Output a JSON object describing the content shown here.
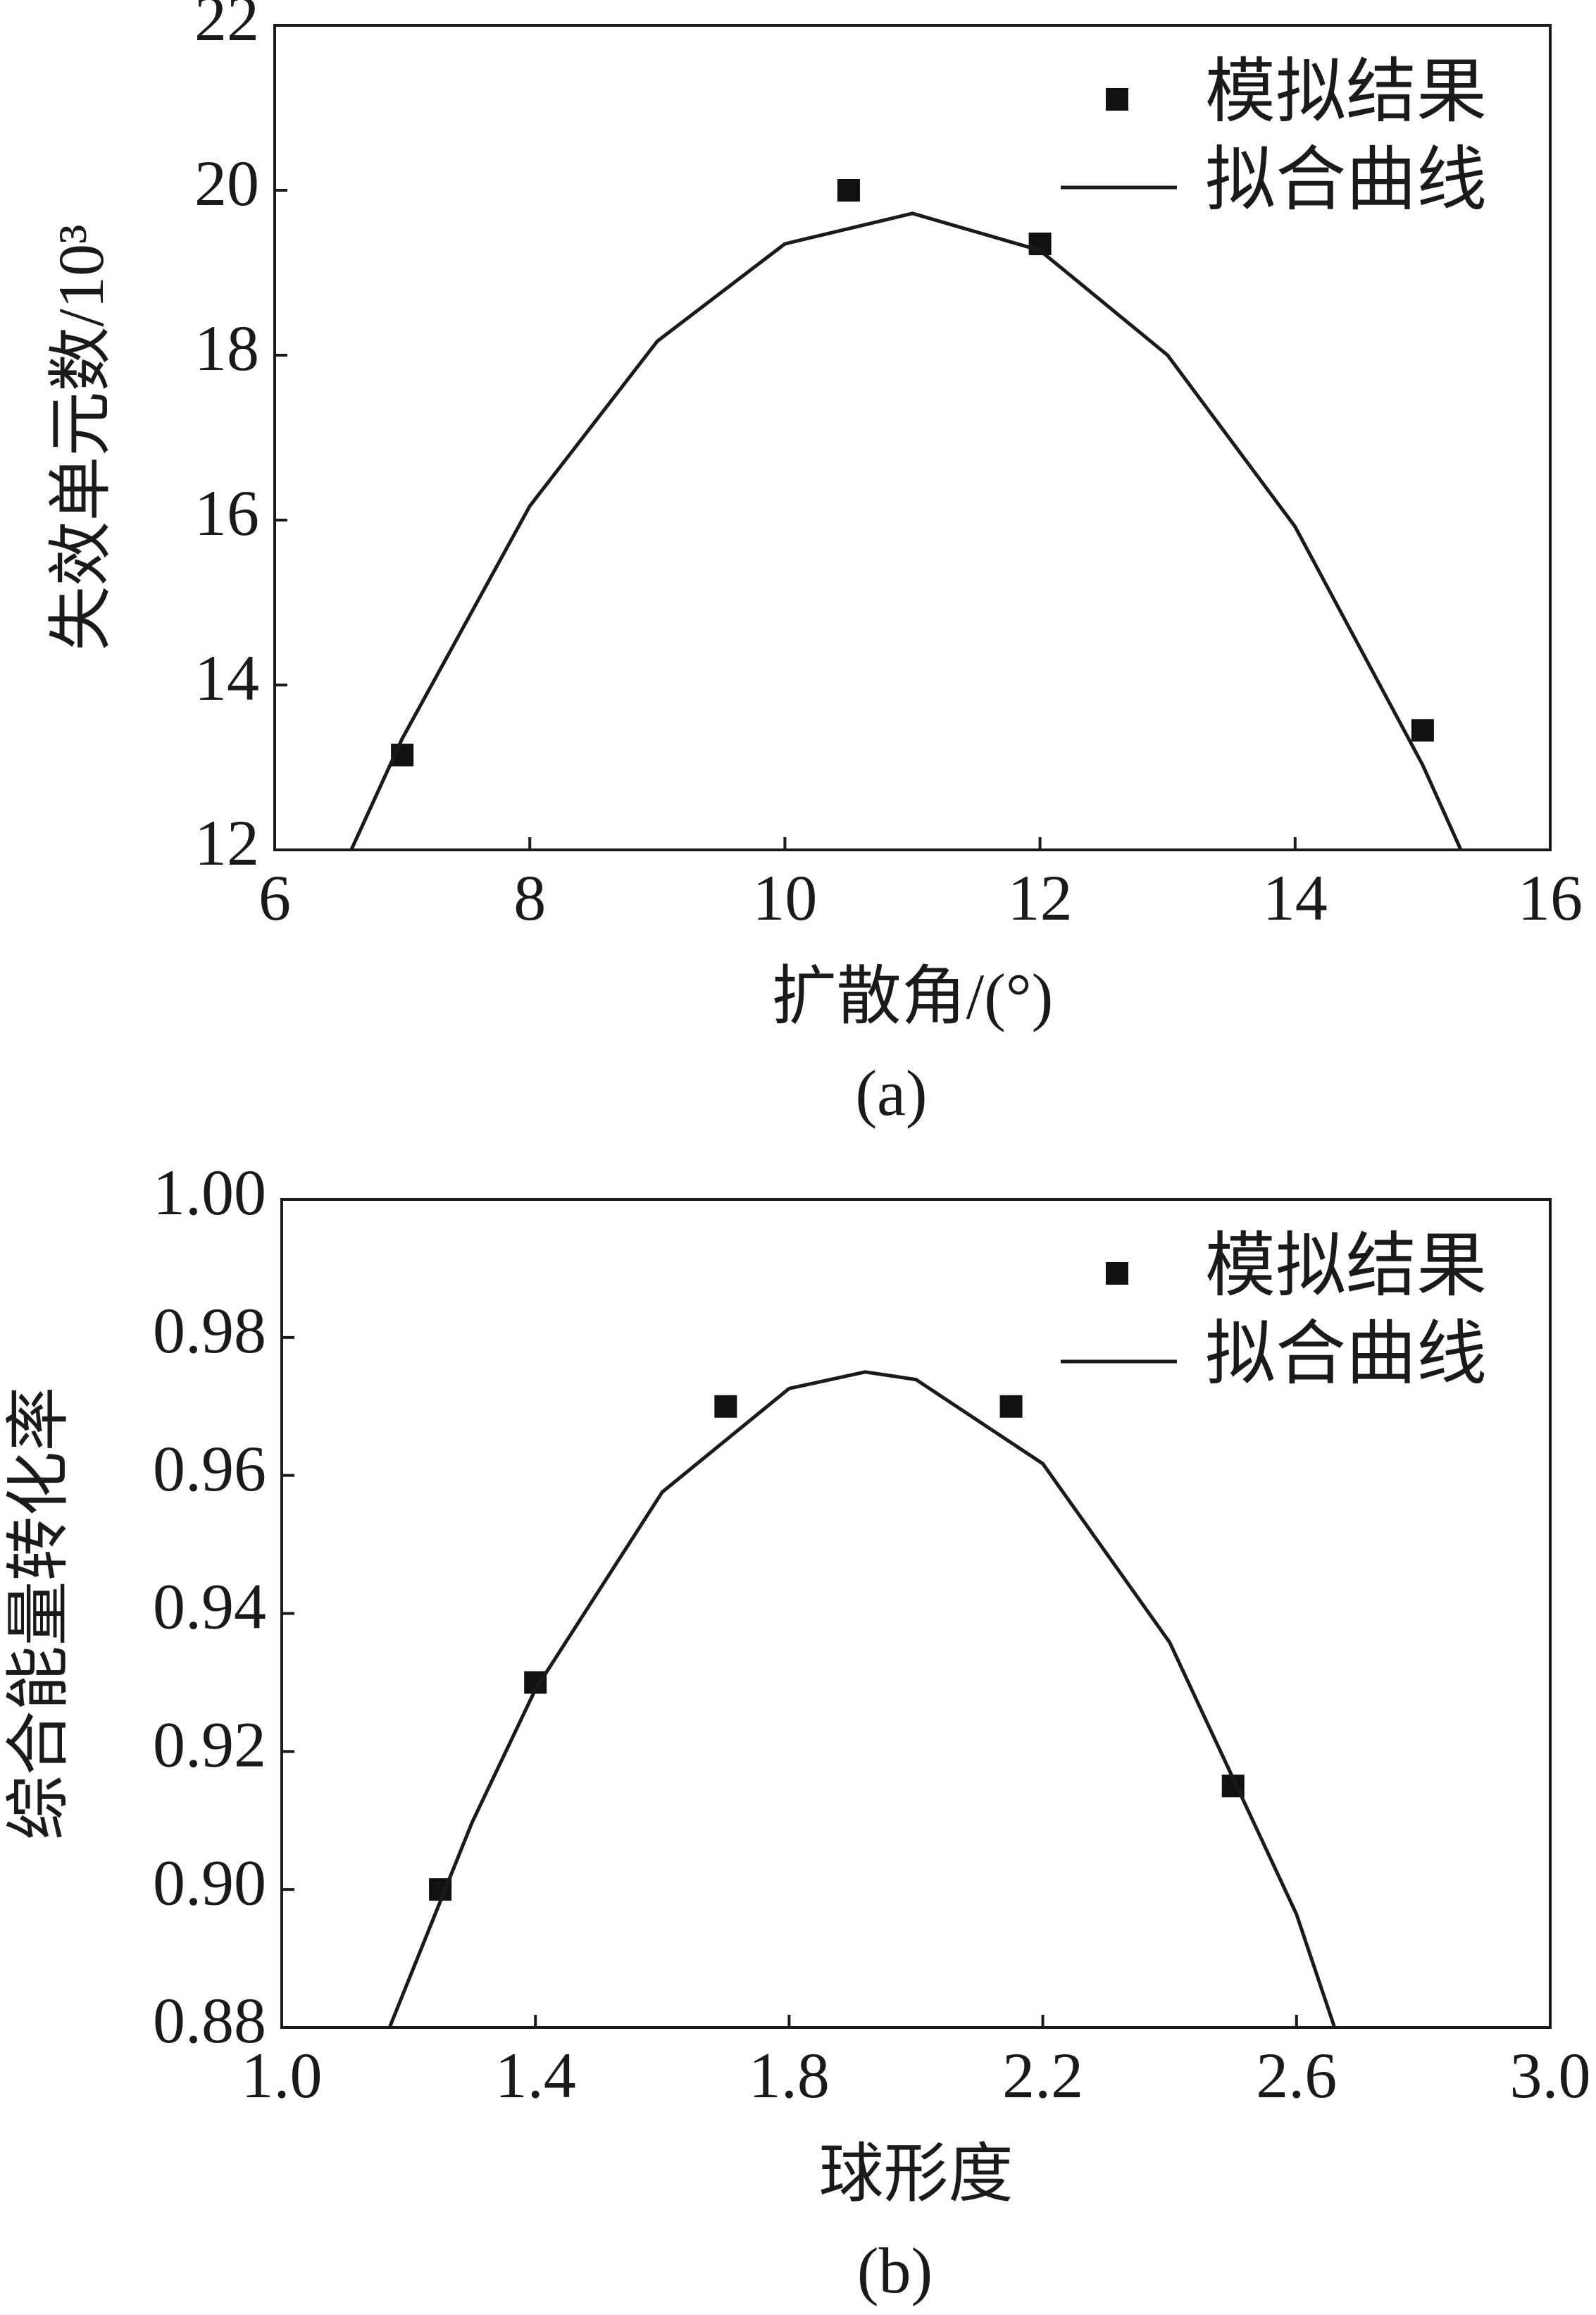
{
  "chart_data": [
    {
      "type": "scatter",
      "xlabel": "扩散角/(°)",
      "ylabel": "失效单元数/10³",
      "caption": "(a)",
      "xlim": [
        6,
        16
      ],
      "xticks": [
        6,
        8,
        10,
        12,
        14,
        16
      ],
      "ylim": [
        12,
        22
      ],
      "yticks": [
        12,
        14,
        16,
        18,
        20,
        22
      ],
      "legend": "upper right",
      "series": [
        {
          "name": "模拟结果",
          "type": "scatter",
          "color": "#111111",
          "x": [
            7,
            10.5,
            12,
            15
          ],
          "values": [
            13.15,
            20.0,
            19.35,
            13.45
          ]
        },
        {
          "name": "拟合曲线",
          "type": "line",
          "color": "#1a1a1a",
          "x": [
            6.6,
            7,
            8,
            9,
            10,
            11,
            12,
            13,
            14,
            15,
            15.3
          ],
          "values": [
            12.0,
            13.35,
            16.17,
            18.17,
            19.35,
            19.72,
            19.27,
            18.0,
            15.92,
            13.03,
            12.0
          ]
        }
      ]
    },
    {
      "type": "scatter",
      "xlabel": "球形度",
      "ylabel": "综合能量转化率",
      "caption": "(b)",
      "xlim": [
        1.0,
        3.0
      ],
      "xticks": [
        {
          "value": 1.0,
          "label": "1.0"
        },
        1.4,
        1.8,
        2.2,
        2.6,
        {
          "value": 3.0,
          "label": "3.0"
        }
      ],
      "ylim": [
        0.88,
        1.0
      ],
      "yticks": [
        0.88,
        {
          "value": 0.9,
          "label": "0.90"
        },
        0.92,
        0.94,
        0.96,
        0.98,
        {
          "value": 1.0,
          "label": "1.00"
        }
      ],
      "legend": "upper right",
      "series": [
        {
          "name": "模拟结果",
          "type": "scatter",
          "color": "#111111",
          "x": [
            1.25,
            1.4,
            1.7,
            2.15,
            2.5
          ],
          "values": [
            0.9,
            0.93,
            0.97,
            0.97,
            0.915
          ]
        },
        {
          "name": "拟合曲线",
          "type": "line",
          "color": "#1a1a1a",
          "x": [
            1.17,
            1.3,
            1.4,
            1.6,
            1.8,
            1.92,
            2.0,
            2.2,
            2.4,
            2.6,
            2.66
          ],
          "values": [
            0.88,
            0.9097,
            0.929,
            0.9576,
            0.9726,
            0.975,
            0.9739,
            0.9617,
            0.9358,
            0.8964,
            0.88
          ]
        }
      ]
    }
  ]
}
